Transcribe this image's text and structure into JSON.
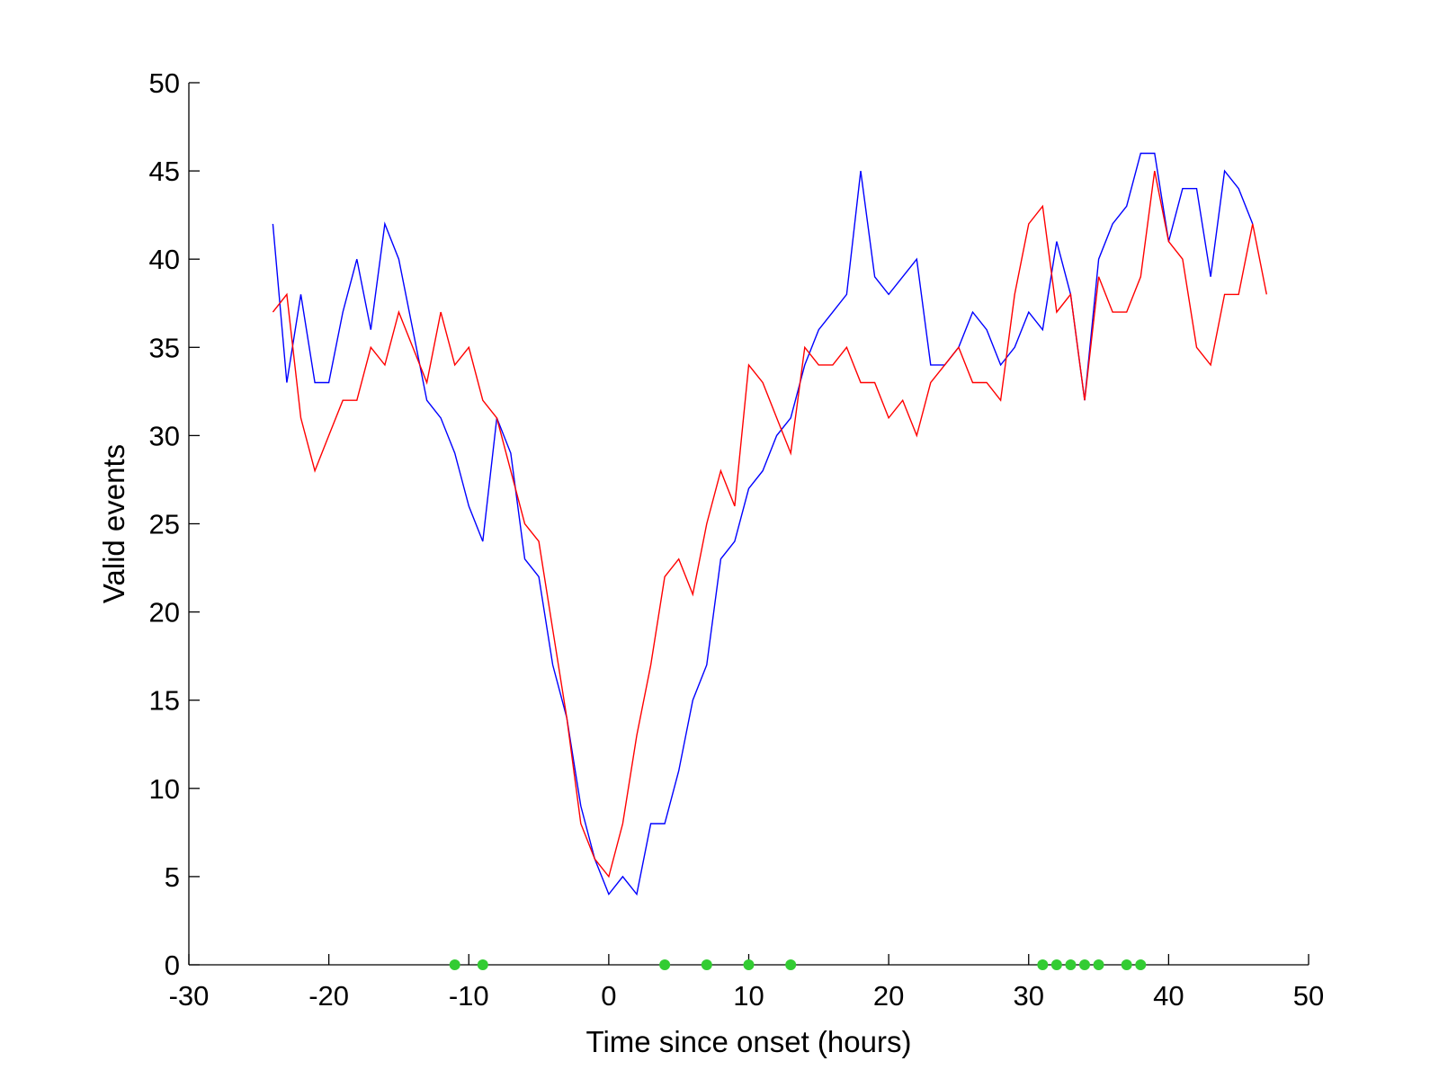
{
  "chart_data": {
    "type": "line",
    "title": "",
    "xlabel": "Time since onset (hours)",
    "ylabel": "Valid events",
    "xlim": [
      -30,
      50
    ],
    "ylim": [
      0,
      50
    ],
    "xticks": [
      -30,
      -20,
      -10,
      0,
      10,
      20,
      30,
      40,
      50
    ],
    "yticks": [
      0,
      5,
      10,
      15,
      20,
      25,
      30,
      35,
      40,
      45,
      50
    ],
    "grid": false,
    "legend": "none",
    "series": [
      {
        "color": "#0000ff",
        "x": [
          -24,
          -23,
          -22,
          -21,
          -20,
          -19,
          -18,
          -17,
          -16,
          -15,
          -14,
          -13,
          -12,
          -11,
          -10,
          -9,
          -8,
          -7,
          -6,
          -5,
          -4,
          -3,
          -2,
          -1,
          0,
          1,
          2,
          3,
          4,
          5,
          6,
          7,
          8,
          9,
          10,
          11,
          12,
          13,
          14,
          15,
          16,
          17,
          18,
          19,
          20,
          21,
          22,
          23,
          24,
          25,
          26,
          27,
          28,
          29,
          30,
          31,
          32,
          33,
          34,
          35,
          36,
          37,
          38,
          39,
          40,
          41,
          42,
          43,
          44,
          45,
          46
        ],
        "y": [
          42,
          33,
          38,
          33,
          33,
          37,
          40,
          36,
          42,
          40,
          36,
          32,
          31,
          29,
          26,
          24,
          31,
          29,
          23,
          22,
          17,
          14,
          9,
          6,
          4,
          5,
          4,
          8,
          8,
          11,
          15,
          17,
          23,
          24,
          27,
          28,
          30,
          31,
          34,
          36,
          37,
          38,
          45,
          39,
          38,
          39,
          40,
          34,
          34,
          35,
          37,
          36,
          34,
          35,
          37,
          36,
          41,
          38,
          32,
          40,
          42,
          43,
          46,
          46,
          41,
          44,
          44,
          39,
          45,
          44,
          42
        ]
      },
      {
        "color": "#ff0000",
        "x": [
          -24,
          -23,
          -22,
          -21,
          -20,
          -19,
          -18,
          -17,
          -16,
          -15,
          -14,
          -13,
          -12,
          -11,
          -10,
          -9,
          -8,
          -7,
          -6,
          -5,
          -4,
          -3,
          -2,
          -1,
          0,
          1,
          2,
          3,
          4,
          5,
          6,
          7,
          8,
          9,
          10,
          11,
          12,
          13,
          14,
          15,
          16,
          17,
          18,
          19,
          20,
          21,
          22,
          23,
          24,
          25,
          26,
          27,
          28,
          29,
          30,
          31,
          32,
          33,
          34,
          35,
          36,
          37,
          38,
          39,
          40,
          41,
          42,
          43,
          44,
          45,
          46,
          47
        ],
        "y": [
          37,
          38,
          31,
          28,
          30,
          32,
          32,
          35,
          34,
          37,
          35,
          33,
          37,
          34,
          35,
          32,
          31,
          28,
          25,
          24,
          19,
          14,
          8,
          6,
          5,
          8,
          13,
          17,
          22,
          23,
          21,
          25,
          28,
          26,
          34,
          33,
          31,
          29,
          35,
          34,
          34,
          35,
          33,
          33,
          31,
          32,
          30,
          33,
          34,
          35,
          33,
          33,
          32,
          38,
          42,
          43,
          37,
          38,
          32,
          39,
          37,
          37,
          39,
          45,
          41,
          40,
          35,
          34,
          38,
          38,
          42,
          38
        ]
      }
    ],
    "markers": {
      "color": "#33cc33",
      "y": 0,
      "x": [
        -11,
        -9,
        4,
        7,
        10,
        13,
        31,
        32,
        33,
        34,
        35,
        37,
        38
      ]
    }
  }
}
